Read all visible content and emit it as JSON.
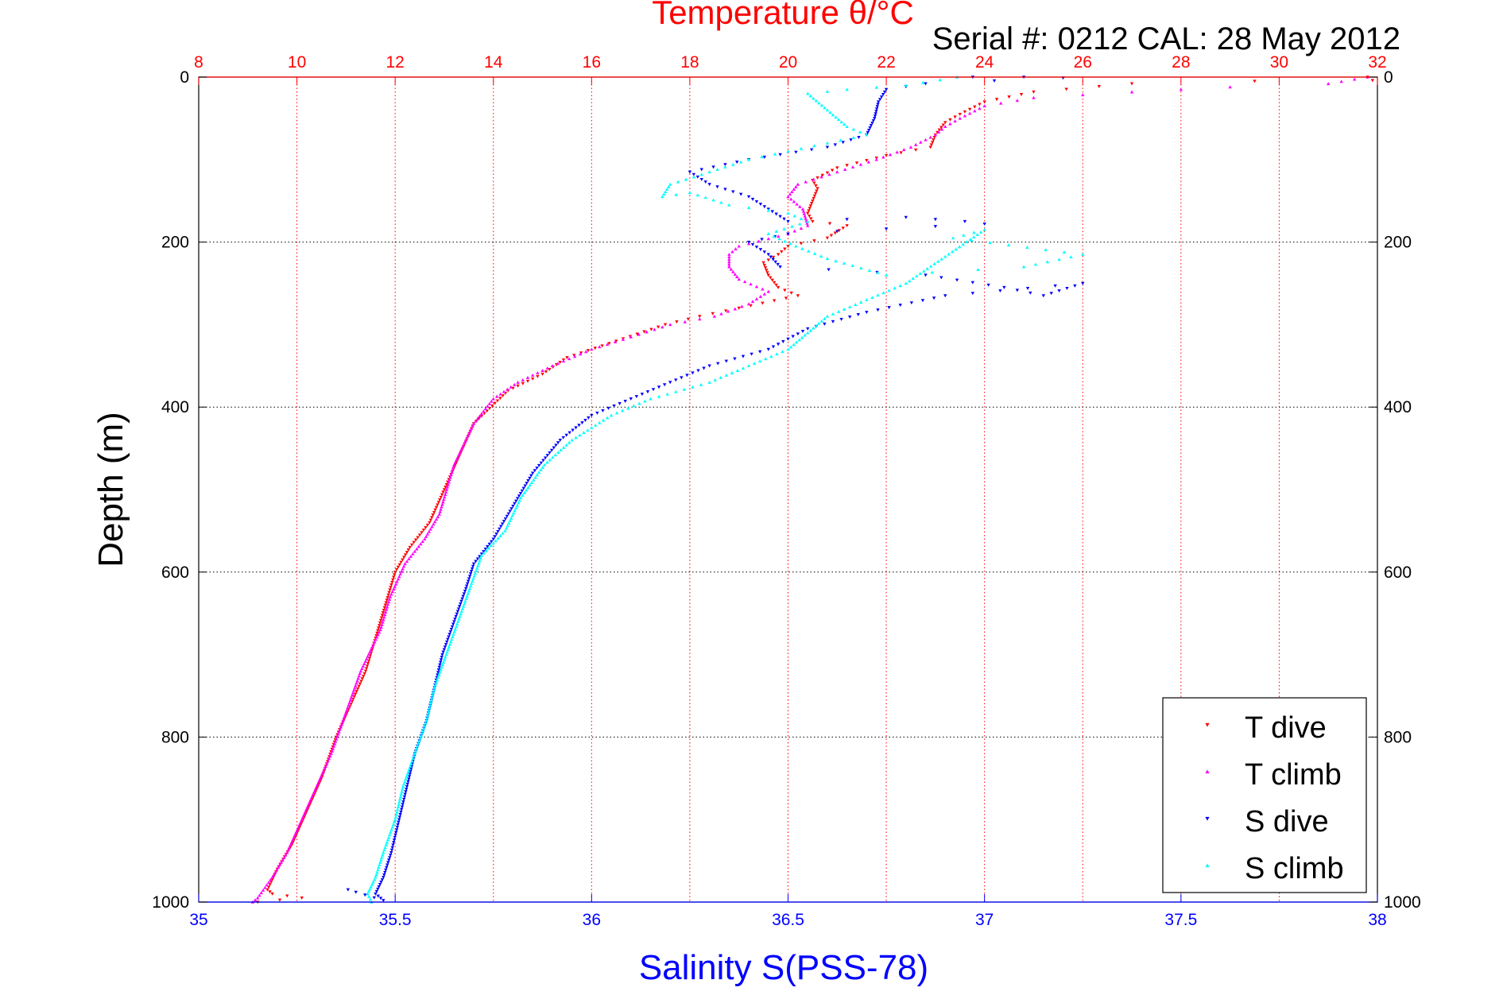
{
  "chart_data": {
    "type": "scatter",
    "title": "Temperature θ/°C",
    "subtitle": "Serial #: 0212  CAL: 28 May 2012",
    "xlabel": "Salinity S(PSS-78)",
    "ylabel": "Depth (m)",
    "top_axis": {
      "label": "Temperature θ/°C",
      "lim": [
        8,
        32
      ],
      "ticks": [
        8,
        10,
        12,
        14,
        16,
        18,
        20,
        22,
        24,
        26,
        28,
        30,
        32
      ],
      "grid": true
    },
    "bottom_axis": {
      "label": "Salinity S(PSS-78)",
      "lim": [
        35,
        38
      ],
      "ticks": [
        35,
        35.5,
        36,
        36.5,
        37,
        37.5,
        38
      ]
    },
    "y_axis": {
      "label": "Depth (m)",
      "lim": [
        0,
        1000
      ],
      "reversed": true,
      "ticks": [
        0,
        200,
        400,
        600,
        800,
        1000
      ],
      "grid": true
    },
    "legend": {
      "placement": "bottom-right",
      "entries": [
        "T dive",
        "T climb",
        "S dive",
        "S climb"
      ]
    },
    "colors": {
      "temperature_axis": "#ff0000",
      "salinity_axis": "#0000ff",
      "T dive": "#ff0000",
      "T climb": "#ff00ff",
      "S dive": "#0000ff",
      "S climb": "#00ffff"
    },
    "series": [
      {
        "name": "T dive",
        "axis": "top",
        "marker": "triangle-down",
        "points": [
          [
            31.8,
            0
          ],
          [
            31.9,
            4
          ],
          [
            29.5,
            5
          ],
          [
            27.0,
            8
          ],
          [
            25.0,
            18
          ],
          [
            24.0,
            30
          ],
          [
            23.5,
            45
          ],
          [
            23.2,
            55
          ],
          [
            23.0,
            70
          ],
          [
            22.9,
            85
          ],
          [
            22.0,
            95
          ],
          [
            21.0,
            110
          ],
          [
            20.5,
            125
          ],
          [
            20.6,
            135
          ],
          [
            20.5,
            150
          ],
          [
            20.4,
            165
          ],
          [
            20.5,
            175
          ],
          [
            21.2,
            180
          ],
          [
            20.8,
            195
          ],
          [
            20.0,
            205
          ],
          [
            19.8,
            215
          ],
          [
            19.5,
            225
          ],
          [
            19.6,
            240
          ],
          [
            19.8,
            255
          ],
          [
            20.2,
            265
          ],
          [
            19.0,
            280
          ],
          [
            18.2,
            290
          ],
          [
            17.5,
            300
          ],
          [
            16.5,
            320
          ],
          [
            15.5,
            340
          ],
          [
            15.0,
            360
          ],
          [
            14.3,
            380
          ],
          [
            13.6,
            420
          ],
          [
            13.3,
            460
          ],
          [
            13.0,
            500
          ],
          [
            12.7,
            540
          ],
          [
            12.3,
            570
          ],
          [
            12.0,
            600
          ],
          [
            11.8,
            640
          ],
          [
            11.6,
            680
          ],
          [
            11.4,
            720
          ],
          [
            11.1,
            760
          ],
          [
            10.8,
            800
          ],
          [
            10.5,
            850
          ],
          [
            10.2,
            890
          ],
          [
            9.9,
            930
          ],
          [
            9.6,
            960
          ],
          [
            9.4,
            985
          ],
          [
            9.5,
            990
          ],
          [
            10.1,
            995
          ],
          [
            9.2,
            1000
          ]
        ]
      },
      {
        "name": "T climb",
        "axis": "top",
        "marker": "triangle-up",
        "points": [
          [
            31.8,
            0
          ],
          [
            31.0,
            8
          ],
          [
            29.0,
            12
          ],
          [
            27.0,
            18
          ],
          [
            25.0,
            25
          ],
          [
            24.0,
            35
          ],
          [
            23.5,
            50
          ],
          [
            23.2,
            60
          ],
          [
            23.0,
            70
          ],
          [
            22.5,
            85
          ],
          [
            21.8,
            100
          ],
          [
            21.0,
            115
          ],
          [
            20.2,
            130
          ],
          [
            20.0,
            145
          ],
          [
            20.3,
            160
          ],
          [
            20.4,
            180
          ],
          [
            20.0,
            190
          ],
          [
            19.0,
            205
          ],
          [
            18.8,
            215
          ],
          [
            18.8,
            230
          ],
          [
            19.0,
            245
          ],
          [
            19.6,
            260
          ],
          [
            19.2,
            275
          ],
          [
            18.5,
            290
          ],
          [
            17.6,
            300
          ],
          [
            16.8,
            315
          ],
          [
            16.0,
            330
          ],
          [
            15.2,
            350
          ],
          [
            14.5,
            370
          ],
          [
            14.0,
            390
          ],
          [
            13.6,
            420
          ],
          [
            13.2,
            470
          ],
          [
            12.9,
            530
          ],
          [
            12.6,
            560
          ],
          [
            12.2,
            590
          ],
          [
            11.9,
            630
          ],
          [
            11.7,
            670
          ],
          [
            11.3,
            720
          ],
          [
            11.0,
            770
          ],
          [
            10.7,
            820
          ],
          [
            10.4,
            860
          ],
          [
            10.1,
            900
          ],
          [
            9.8,
            940
          ],
          [
            9.5,
            970
          ],
          [
            9.2,
            995
          ],
          [
            9.1,
            1000
          ]
        ]
      },
      {
        "name": "S dive",
        "axis": "bottom",
        "marker": "triangle-down",
        "points": [
          [
            36.97,
            0
          ],
          [
            37.1,
            0
          ],
          [
            37.2,
            1
          ],
          [
            36.85,
            8
          ],
          [
            36.75,
            15
          ],
          [
            36.73,
            30
          ],
          [
            36.72,
            50
          ],
          [
            36.7,
            70
          ],
          [
            36.6,
            85
          ],
          [
            36.4,
            100
          ],
          [
            36.25,
            115
          ],
          [
            36.3,
            130
          ],
          [
            36.4,
            145
          ],
          [
            36.45,
            160
          ],
          [
            36.5,
            175
          ],
          [
            36.8,
            170
          ],
          [
            36.95,
            175
          ],
          [
            37.0,
            178
          ],
          [
            36.5,
            190
          ],
          [
            36.4,
            200
          ],
          [
            36.45,
            215
          ],
          [
            36.48,
            230
          ],
          [
            36.85,
            240
          ],
          [
            37.05,
            255
          ],
          [
            37.15,
            265
          ],
          [
            37.25,
            250
          ],
          [
            36.9,
            265
          ],
          [
            36.7,
            285
          ],
          [
            36.55,
            305
          ],
          [
            36.45,
            330
          ],
          [
            36.3,
            350
          ],
          [
            36.2,
            370
          ],
          [
            36.1,
            390
          ],
          [
            36.0,
            410
          ],
          [
            35.92,
            440
          ],
          [
            35.85,
            480
          ],
          [
            35.8,
            520
          ],
          [
            35.75,
            560
          ],
          [
            35.7,
            590
          ],
          [
            35.68,
            620
          ],
          [
            35.65,
            660
          ],
          [
            35.62,
            700
          ],
          [
            35.6,
            740
          ],
          [
            35.58,
            780
          ],
          [
            35.55,
            820
          ],
          [
            35.53,
            860
          ],
          [
            35.51,
            900
          ],
          [
            35.49,
            940
          ],
          [
            35.47,
            970
          ],
          [
            35.45,
            990
          ],
          [
            35.47,
            998
          ],
          [
            35.4,
            988
          ],
          [
            35.38,
            985
          ]
        ]
      },
      {
        "name": "S climb",
        "axis": "bottom",
        "marker": "triangle-up",
        "points": [
          [
            36.93,
            0
          ],
          [
            36.8,
            10
          ],
          [
            36.65,
            15
          ],
          [
            36.55,
            20
          ],
          [
            36.6,
            40
          ],
          [
            36.65,
            60
          ],
          [
            36.7,
            70
          ],
          [
            36.6,
            80
          ],
          [
            36.5,
            90
          ],
          [
            36.4,
            100
          ],
          [
            36.3,
            115
          ],
          [
            36.2,
            130
          ],
          [
            36.18,
            145
          ],
          [
            36.25,
            140
          ],
          [
            36.35,
            155
          ],
          [
            36.5,
            165
          ],
          [
            36.55,
            175
          ],
          [
            36.45,
            190
          ],
          [
            36.52,
            205
          ],
          [
            36.6,
            220
          ],
          [
            36.75,
            240
          ],
          [
            37.1,
            230
          ],
          [
            37.25,
            215
          ],
          [
            36.92,
            195
          ],
          [
            37.0,
            185
          ],
          [
            36.8,
            250
          ],
          [
            36.7,
            270
          ],
          [
            36.6,
            290
          ],
          [
            36.55,
            310
          ],
          [
            36.5,
            330
          ],
          [
            36.4,
            350
          ],
          [
            36.3,
            370
          ],
          [
            36.15,
            390
          ],
          [
            36.05,
            410
          ],
          [
            35.95,
            440
          ],
          [
            35.88,
            470
          ],
          [
            35.82,
            510
          ],
          [
            35.78,
            550
          ],
          [
            35.72,
            580
          ],
          [
            35.69,
            620
          ],
          [
            35.66,
            660
          ],
          [
            35.63,
            700
          ],
          [
            35.6,
            740
          ],
          [
            35.58,
            780
          ],
          [
            35.55,
            820
          ],
          [
            35.52,
            860
          ],
          [
            35.5,
            900
          ],
          [
            35.47,
            940
          ],
          [
            35.45,
            970
          ],
          [
            35.43,
            990
          ],
          [
            35.44,
            1000
          ]
        ]
      }
    ]
  }
}
